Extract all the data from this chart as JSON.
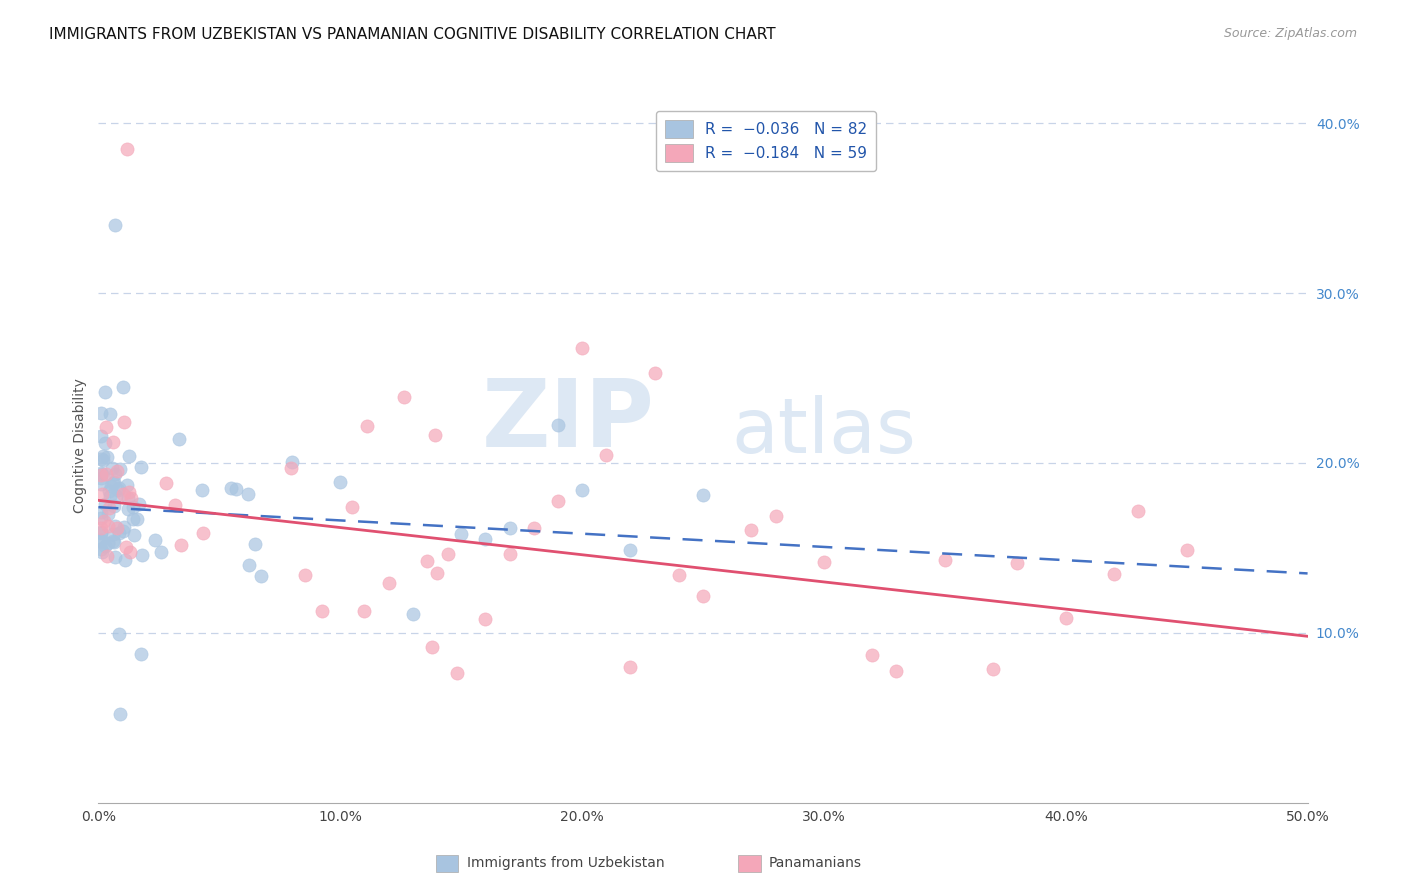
{
  "title": "IMMIGRANTS FROM UZBEKISTAN VS PANAMANIAN COGNITIVE DISABILITY CORRELATION CHART",
  "source": "Source: ZipAtlas.com",
  "ylabel": "Cognitive Disability",
  "xlim": [
    0,
    0.5
  ],
  "ylim": [
    0,
    0.42
  ],
  "xticks": [
    0.0,
    0.1,
    0.2,
    0.3,
    0.4,
    0.5
  ],
  "xtick_labels": [
    "0.0%",
    "10.0%",
    "20.0%",
    "30.0%",
    "40.0%",
    "50.0%"
  ],
  "yticks_right": [
    0.1,
    0.2,
    0.3,
    0.4
  ],
  "ytick_labels_right": [
    "10.0%",
    "20.0%",
    "30.0%",
    "40.0%"
  ],
  "series": [
    {
      "name": "Immigrants from Uzbekistan",
      "R": -0.036,
      "N": 82,
      "color": "#a8c4e0",
      "line_color": "#4472c4",
      "trend_start": 0.174,
      "trend_end": 0.135
    },
    {
      "name": "Panamanians",
      "R": -0.184,
      "N": 59,
      "color": "#f4a7b9",
      "line_color": "#e05070",
      "trend_start": 0.178,
      "trend_end": 0.098
    }
  ],
  "watermark_zip": "ZIP",
  "watermark_atlas": "atlas",
  "background_color": "#ffffff",
  "grid_color": "#c8d4e8",
  "title_fontsize": 11,
  "axis_label_fontsize": 10,
  "tick_fontsize": 10
}
